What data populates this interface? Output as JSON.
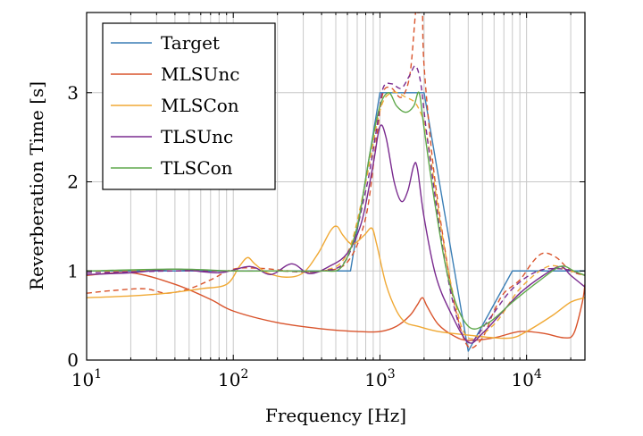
{
  "chart_data": {
    "type": "line",
    "title": "",
    "xlabel": "Frequency [Hz]",
    "ylabel": "Reverberation Time [s]",
    "xscale": "log",
    "xlim": [
      10,
      25000
    ],
    "ylim": [
      0,
      3.9
    ],
    "grid": true,
    "legend_position": "top-left",
    "x_ticks": [
      {
        "value": 10,
        "base": "10",
        "exp": "1"
      },
      {
        "value": 100,
        "base": "10",
        "exp": "2"
      },
      {
        "value": 1000,
        "base": "10",
        "exp": "3"
      },
      {
        "value": 10000,
        "base": "10",
        "exp": "4"
      }
    ],
    "y_ticks": [
      {
        "value": 0,
        "label": "0"
      },
      {
        "value": 1,
        "label": "1"
      },
      {
        "value": 2,
        "label": "2"
      },
      {
        "value": 3,
        "label": "3"
      }
    ],
    "series": [
      {
        "name": "Target",
        "color": "#3b7fb6",
        "dash": false,
        "points": [
          [
            10,
            1
          ],
          [
            630,
            1
          ],
          [
            1000,
            3
          ],
          [
            2000,
            3
          ],
          [
            4000,
            0.1
          ],
          [
            8000,
            1
          ],
          [
            25000,
            1
          ]
        ]
      },
      {
        "name": "MLSUnc",
        "color": "#d9542c",
        "dash": false,
        "points": [
          [
            10,
            0.95
          ],
          [
            20,
            0.98
          ],
          [
            40,
            0.85
          ],
          [
            70,
            0.68
          ],
          [
            100,
            0.55
          ],
          [
            200,
            0.42
          ],
          [
            400,
            0.35
          ],
          [
            700,
            0.32
          ],
          [
            1000,
            0.32
          ],
          [
            1300,
            0.38
          ],
          [
            1600,
            0.5
          ],
          [
            1800,
            0.62
          ],
          [
            1950,
            0.7
          ],
          [
            2100,
            0.6
          ],
          [
            2500,
            0.4
          ],
          [
            3200,
            0.27
          ],
          [
            4000,
            0.22
          ],
          [
            6000,
            0.25
          ],
          [
            9000,
            0.32
          ],
          [
            13000,
            0.3
          ],
          [
            18000,
            0.25
          ],
          [
            21000,
            0.3
          ],
          [
            24000,
            0.65
          ],
          [
            25000,
            0.85
          ]
        ]
      },
      {
        "name": "MLSUnc (dashed)",
        "color": "#d9542c",
        "dash": true,
        "points": [
          [
            10,
            0.75
          ],
          [
            15,
            0.78
          ],
          [
            25,
            0.8
          ],
          [
            35,
            0.75
          ],
          [
            50,
            0.8
          ],
          [
            70,
            0.9
          ],
          [
            100,
            1.02
          ],
          [
            150,
            1.03
          ],
          [
            250,
            1.0
          ],
          [
            400,
            1.0
          ],
          [
            600,
            1.1
          ],
          [
            800,
            1.6
          ],
          [
            950,
            2.5
          ],
          [
            1050,
            3.0
          ],
          [
            1200,
            3.05
          ],
          [
            1400,
            2.95
          ],
          [
            1600,
            3.2
          ],
          [
            1750,
            3.9
          ],
          [
            1800,
            3.9
          ],
          [
            1900,
            3.9
          ],
          [
            1950,
            3.9
          ],
          [
            2000,
            3.3
          ],
          [
            2300,
            2.2
          ],
          [
            2800,
            1.2
          ],
          [
            3300,
            0.55
          ],
          [
            4000,
            0.15
          ],
          [
            5000,
            0.25
          ],
          [
            6000,
            0.55
          ],
          [
            7000,
            0.75
          ],
          [
            9000,
            0.9
          ],
          [
            11000,
            1.1
          ],
          [
            13000,
            1.2
          ],
          [
            16000,
            1.15
          ],
          [
            20000,
            1.0
          ],
          [
            25000,
            0.95
          ]
        ]
      },
      {
        "name": "MLSCon",
        "color": "#f0a935",
        "dash": false,
        "points": [
          [
            10,
            0.7
          ],
          [
            20,
            0.72
          ],
          [
            35,
            0.75
          ],
          [
            60,
            0.8
          ],
          [
            90,
            0.85
          ],
          [
            110,
            1.05
          ],
          [
            125,
            1.15
          ],
          [
            140,
            1.08
          ],
          [
            170,
            0.98
          ],
          [
            230,
            0.93
          ],
          [
            300,
            0.98
          ],
          [
            380,
            1.2
          ],
          [
            460,
            1.45
          ],
          [
            510,
            1.5
          ],
          [
            560,
            1.4
          ],
          [
            650,
            1.3
          ],
          [
            780,
            1.4
          ],
          [
            880,
            1.48
          ],
          [
            950,
            1.3
          ],
          [
            1100,
            0.85
          ],
          [
            1300,
            0.55
          ],
          [
            1500,
            0.42
          ],
          [
            1800,
            0.38
          ],
          [
            2500,
            0.32
          ],
          [
            4000,
            0.28
          ],
          [
            6000,
            0.25
          ],
          [
            8000,
            0.25
          ],
          [
            10000,
            0.32
          ],
          [
            15000,
            0.5
          ],
          [
            20000,
            0.65
          ],
          [
            25000,
            0.7
          ]
        ]
      },
      {
        "name": "MLSCon (dashed)",
        "color": "#f0a935",
        "dash": true,
        "points": [
          [
            10,
            1.0
          ],
          [
            40,
            1.0
          ],
          [
            100,
            1.0
          ],
          [
            200,
            1.0
          ],
          [
            400,
            1.0
          ],
          [
            600,
            1.2
          ],
          [
            800,
            2.0
          ],
          [
            1000,
            2.8
          ],
          [
            1200,
            3.0
          ],
          [
            1500,
            2.95
          ],
          [
            1800,
            2.85
          ],
          [
            2100,
            2.5
          ],
          [
            2600,
            1.5
          ],
          [
            3200,
            0.7
          ],
          [
            4000,
            0.25
          ],
          [
            6000,
            0.4
          ],
          [
            9000,
            0.8
          ],
          [
            14000,
            1.05
          ],
          [
            20000,
            1.0
          ],
          [
            25000,
            0.95
          ]
        ]
      },
      {
        "name": "TLSUnc",
        "color": "#7a2b8f",
        "dash": false,
        "points": [
          [
            10,
            0.96
          ],
          [
            20,
            0.98
          ],
          [
            40,
            1.02
          ],
          [
            80,
            0.98
          ],
          [
            130,
            1.05
          ],
          [
            180,
            0.96
          ],
          [
            250,
            1.08
          ],
          [
            330,
            0.97
          ],
          [
            450,
            1.05
          ],
          [
            600,
            1.2
          ],
          [
            750,
            1.55
          ],
          [
            900,
            2.2
          ],
          [
            1000,
            2.62
          ],
          [
            1100,
            2.5
          ],
          [
            1250,
            2.0
          ],
          [
            1400,
            1.78
          ],
          [
            1550,
            1.9
          ],
          [
            1700,
            2.18
          ],
          [
            1800,
            2.15
          ],
          [
            2000,
            1.6
          ],
          [
            2400,
            0.95
          ],
          [
            3000,
            0.55
          ],
          [
            4000,
            0.2
          ],
          [
            5000,
            0.3
          ],
          [
            6500,
            0.5
          ],
          [
            9000,
            0.75
          ],
          [
            13000,
            0.95
          ],
          [
            17000,
            1.05
          ],
          [
            20000,
            0.95
          ],
          [
            25000,
            0.82
          ]
        ]
      },
      {
        "name": "TLSUnc (dashed)",
        "color": "#7a2b8f",
        "dash": true,
        "points": [
          [
            10,
            0.98
          ],
          [
            40,
            1.0
          ],
          [
            100,
            1.0
          ],
          [
            200,
            1.0
          ],
          [
            400,
            1.0
          ],
          [
            600,
            1.15
          ],
          [
            800,
            1.9
          ],
          [
            950,
            2.6
          ],
          [
            1050,
            3.05
          ],
          [
            1200,
            3.1
          ],
          [
            1400,
            3.05
          ],
          [
            1600,
            3.2
          ],
          [
            1750,
            3.3
          ],
          [
            1900,
            3.1
          ],
          [
            2100,
            2.5
          ],
          [
            2600,
            1.4
          ],
          [
            3200,
            0.6
          ],
          [
            4000,
            0.2
          ],
          [
            5500,
            0.45
          ],
          [
            8000,
            0.8
          ],
          [
            12000,
            1.0
          ],
          [
            18000,
            1.02
          ],
          [
            25000,
            0.95
          ]
        ]
      },
      {
        "name": "TLSCon",
        "color": "#5fa84b",
        "dash": false,
        "points": [
          [
            10,
            1.0
          ],
          [
            40,
            1.02
          ],
          [
            100,
            1.0
          ],
          [
            200,
            1.0
          ],
          [
            400,
            1.0
          ],
          [
            550,
            1.05
          ],
          [
            700,
            1.5
          ],
          [
            850,
            2.3
          ],
          [
            1000,
            2.85
          ],
          [
            1150,
            3.0
          ],
          [
            1300,
            2.85
          ],
          [
            1500,
            2.78
          ],
          [
            1700,
            2.85
          ],
          [
            1850,
            3.0
          ],
          [
            2000,
            2.6
          ],
          [
            2400,
            1.7
          ],
          [
            3000,
            0.85
          ],
          [
            4000,
            0.38
          ],
          [
            5500,
            0.42
          ],
          [
            8000,
            0.65
          ],
          [
            12000,
            0.88
          ],
          [
            17000,
            1.05
          ],
          [
            21000,
            1.0
          ],
          [
            25000,
            0.95
          ]
        ]
      }
    ],
    "legend": [
      {
        "name": "Target",
        "color": "#3b7fb6"
      },
      {
        "name": "MLSUnc",
        "color": "#d9542c"
      },
      {
        "name": "MLSCon",
        "color": "#f0a935"
      },
      {
        "name": "TLSUnc",
        "color": "#7a2b8f"
      },
      {
        "name": "TLSCon",
        "color": "#5fa84b"
      }
    ]
  }
}
